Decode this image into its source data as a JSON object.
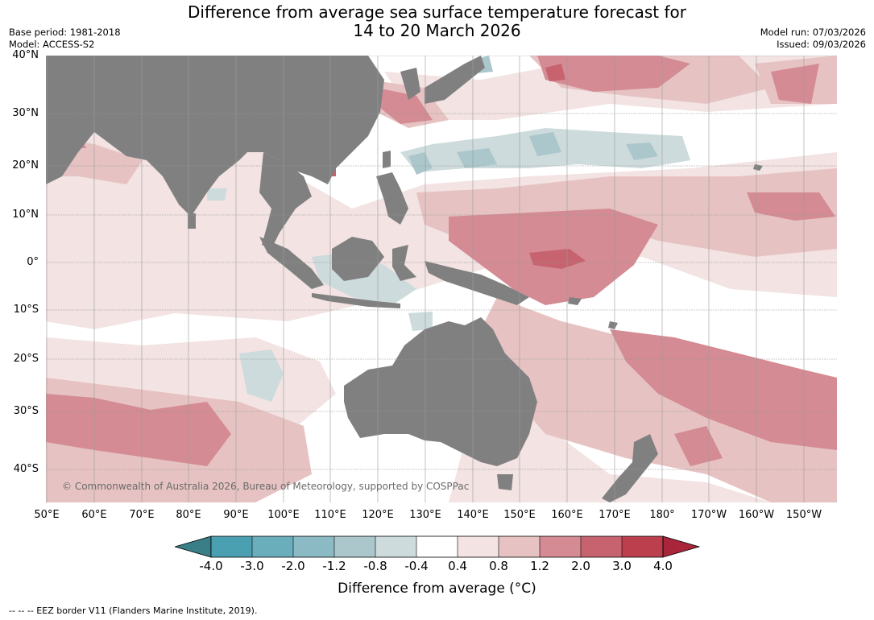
{
  "title": {
    "line1": "Difference from average sea surface temperature forecast for",
    "line2": "14 to 20 March 2026"
  },
  "meta": {
    "base_period": "Base period: 1981-2018",
    "model": "Model: ACCESS-S2",
    "model_run": "Model run: 07/03/2026",
    "issued": "Issued: 09/03/2026"
  },
  "axes": {
    "lat_labels": [
      "40°N",
      "30°N",
      "20°N",
      "10°N",
      "0°",
      "10°S",
      "20°S",
      "30°S",
      "40°S"
    ],
    "lon_labels": [
      "50°E",
      "60°E",
      "70°E",
      "80°E",
      "90°E",
      "100°E",
      "110°E",
      "120°E",
      "130°E",
      "140°E",
      "150°E",
      "160°E",
      "170°E",
      "180°",
      "170°W",
      "160°W",
      "150°W"
    ]
  },
  "colorbar": {
    "title": "Difference from average (°C)",
    "ticks": [
      "-4.0",
      "-3.0",
      "-2.0",
      "-1.2",
      "-0.8",
      "-0.4",
      "0.4",
      "0.8",
      "1.2",
      "2.0",
      "3.0",
      "4.0"
    ],
    "colors": {
      "under": "#3a7f88",
      "c1": "#4aa0b0",
      "c2": "#6aaebc",
      "c3": "#8bb9c4",
      "c4": "#abc7cc",
      "c5": "#cddbdc",
      "c6": "#ffffff",
      "c7": "#f3e3e3",
      "c8": "#e6c3c2",
      "c9": "#d48b93",
      "c10": "#c7636f",
      "c11": "#bb3f4d",
      "over": "#a8253a"
    }
  },
  "map": {
    "land_color": "#808080",
    "grid_color": "#9a9a9a",
    "copyright": "© Commonwealth of Australia 2026, Bureau of Meteorology, supported by COSPPac"
  },
  "footer": {
    "eez_note": "--  --  -- EEZ border V11 (Flanders Marine Institute, 2019)."
  }
}
